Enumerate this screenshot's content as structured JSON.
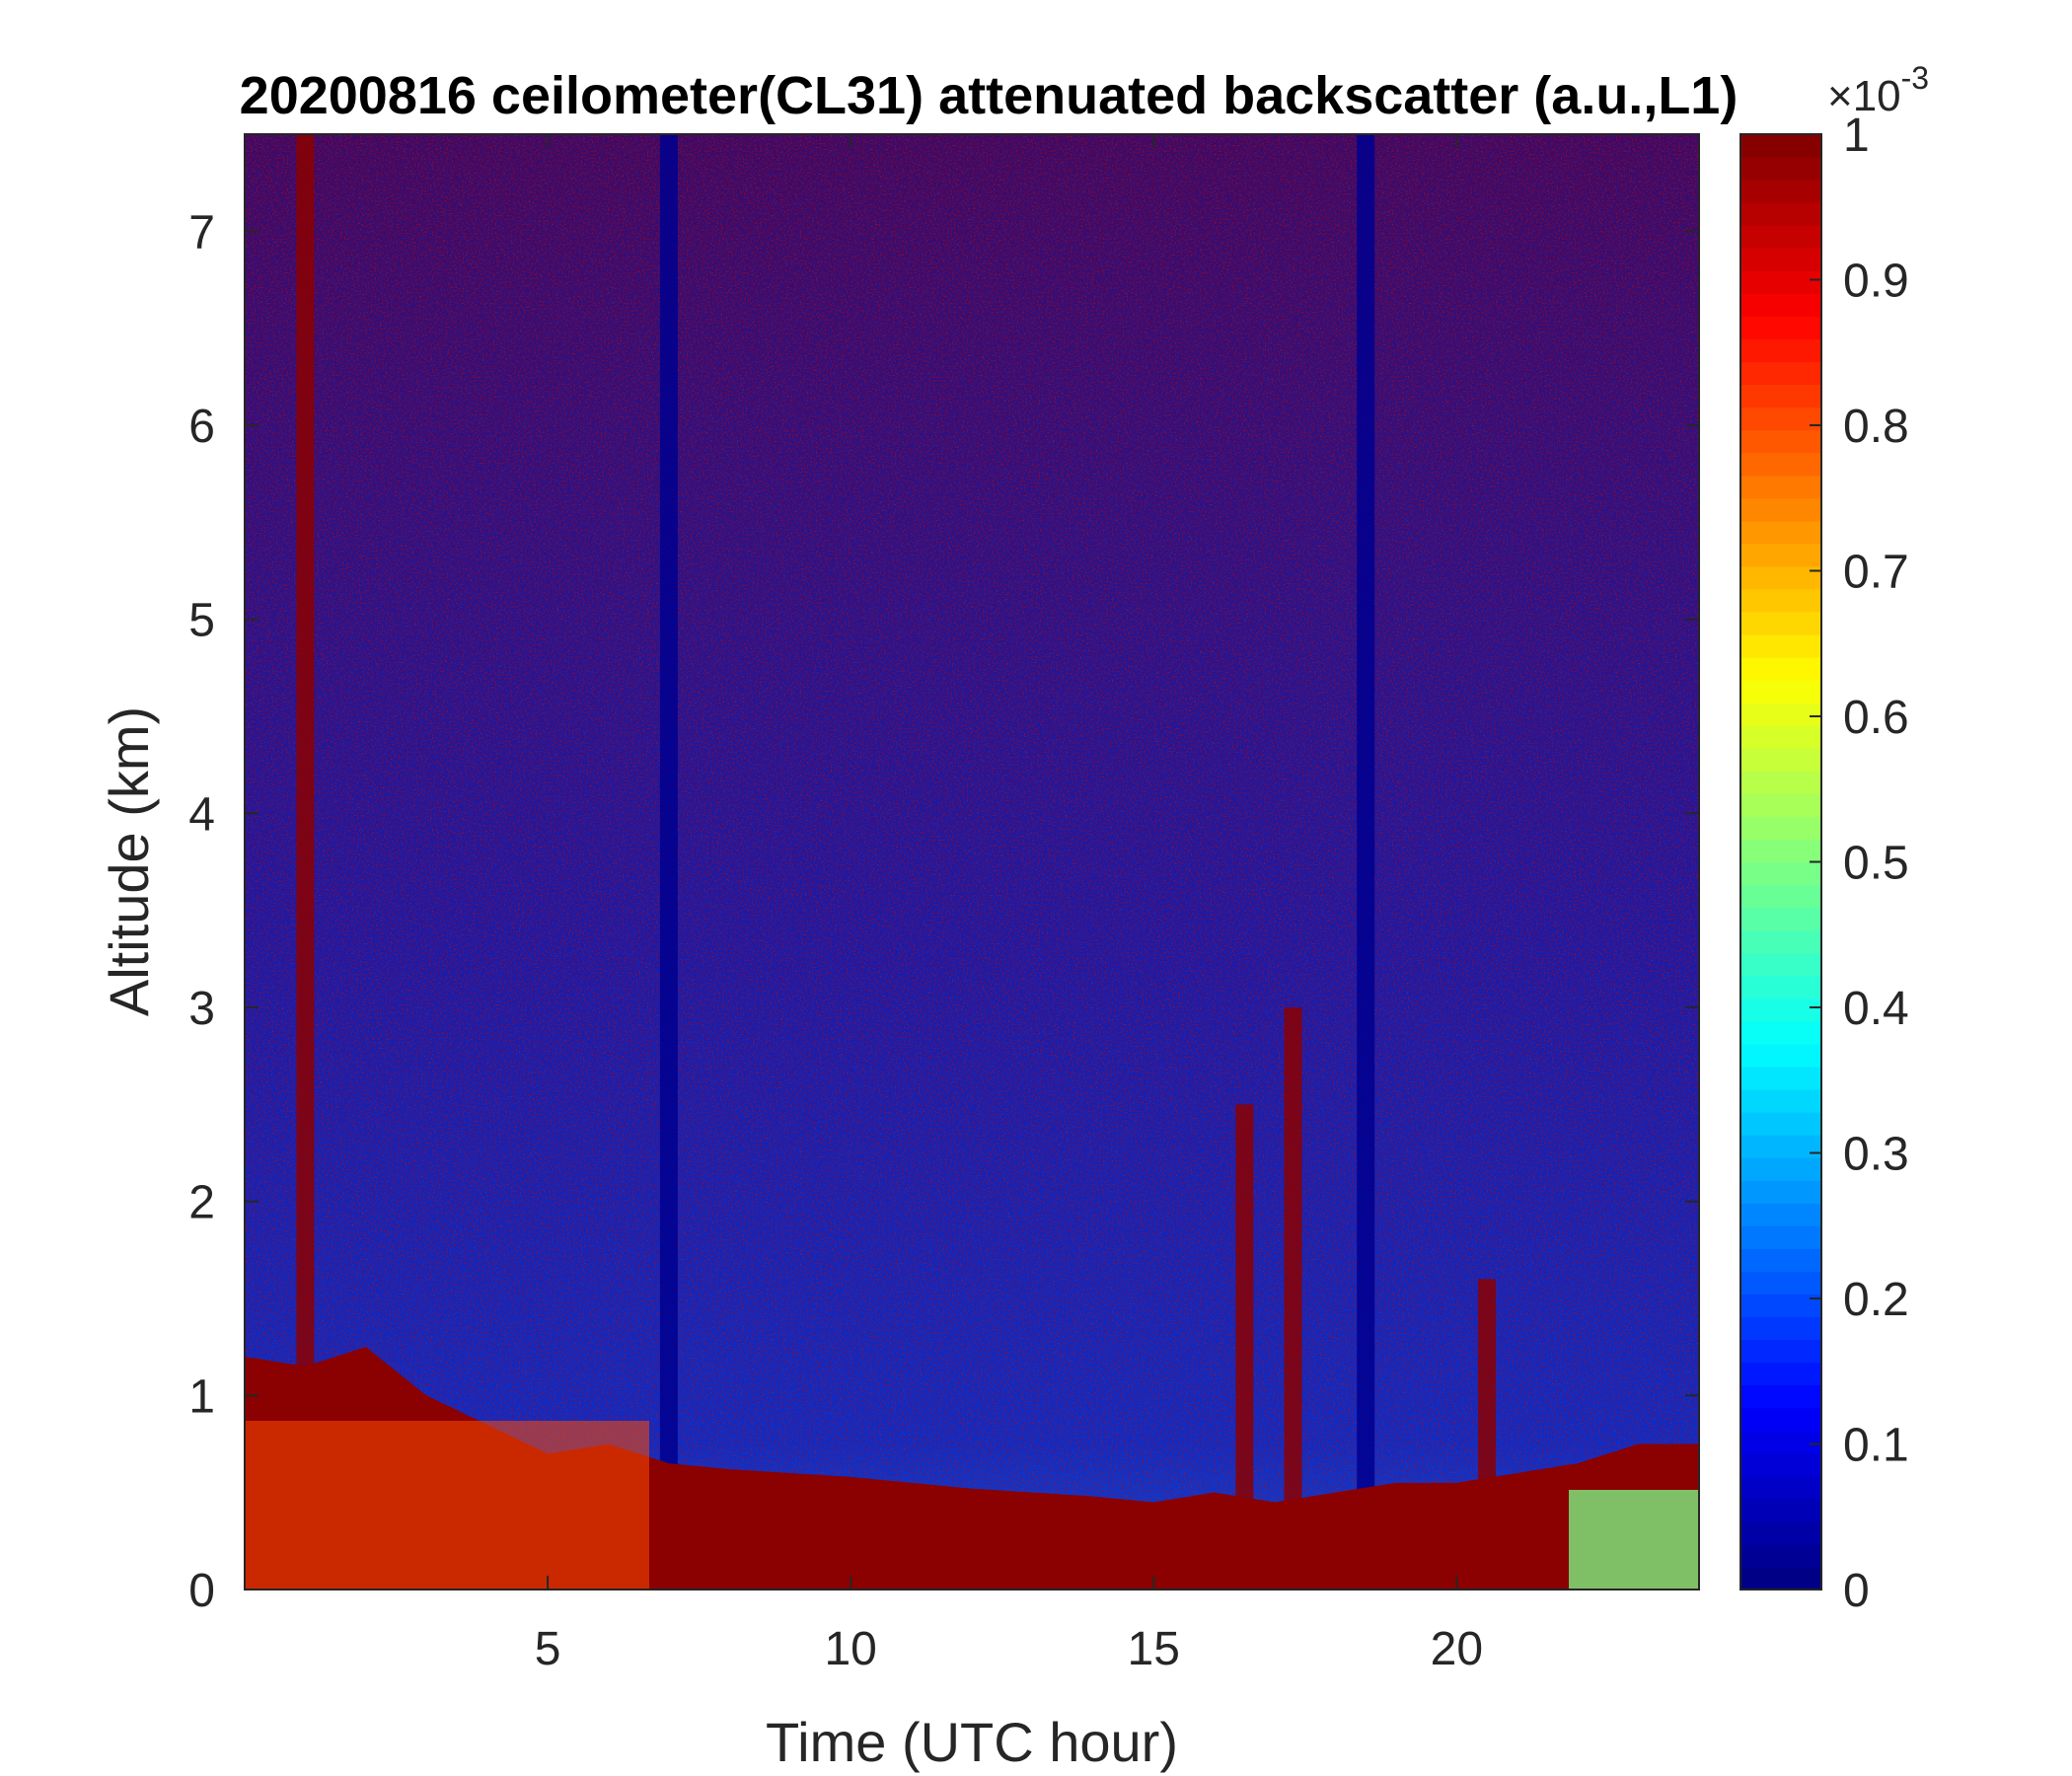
{
  "chart_data": {
    "type": "heatmap",
    "title": "20200816 ceilometer(CL31) attenuated backscatter (a.u.,L1)",
    "xlabel": "Time (UTC hour)",
    "ylabel": "Altitude (km)",
    "xlim": [
      0,
      24
    ],
    "ylim": [
      0,
      7.5
    ],
    "x_ticks": [
      5,
      10,
      15,
      20
    ],
    "y_ticks": [
      0,
      1,
      2,
      3,
      4,
      5,
      6,
      7
    ],
    "colormap": "jet",
    "colorbar": {
      "range": [
        0,
        0.001
      ],
      "exponent_label": "×10",
      "exponent_power": "-3",
      "ticks": [
        0,
        0.1,
        0.2,
        0.3,
        0.4,
        0.5,
        0.6,
        0.7,
        0.8,
        0.9,
        1
      ],
      "tick_labels": [
        "0",
        "0.1",
        "0.2",
        "0.3",
        "0.4",
        "0.5",
        "0.6",
        "0.7",
        "0.8",
        "0.9",
        "1"
      ]
    },
    "grid": false,
    "boundary_layer_top_km": [
      [
        0,
        1.2
      ],
      [
        1,
        1.15
      ],
      [
        2,
        1.25
      ],
      [
        3,
        1.0
      ],
      [
        4,
        0.85
      ],
      [
        5,
        0.7
      ],
      [
        6,
        0.75
      ],
      [
        7,
        0.65
      ],
      [
        8,
        0.62
      ],
      [
        9,
        0.6
      ],
      [
        10,
        0.58
      ],
      [
        11,
        0.55
      ],
      [
        12,
        0.52
      ],
      [
        13,
        0.5
      ],
      [
        14,
        0.48
      ],
      [
        15,
        0.45
      ],
      [
        16,
        0.5
      ],
      [
        17,
        0.45
      ],
      [
        18,
        0.5
      ],
      [
        19,
        0.55
      ],
      [
        20,
        0.55
      ],
      [
        21,
        0.6
      ],
      [
        22,
        0.65
      ],
      [
        23,
        0.75
      ],
      [
        24,
        0.75
      ]
    ],
    "vertical_features": [
      {
        "time": 1.0,
        "top_km": 7.5,
        "value": "high"
      },
      {
        "time": 7.0,
        "top_km": 7.5,
        "value": "low"
      },
      {
        "time": 16.5,
        "top_km": 2.5,
        "value": "high"
      },
      {
        "time": 17.3,
        "top_km": 3.0,
        "value": "high"
      },
      {
        "time": 18.5,
        "top_km": 7.5,
        "value": "low"
      },
      {
        "time": 20.5,
        "top_km": 1.6,
        "value": "high"
      }
    ]
  }
}
